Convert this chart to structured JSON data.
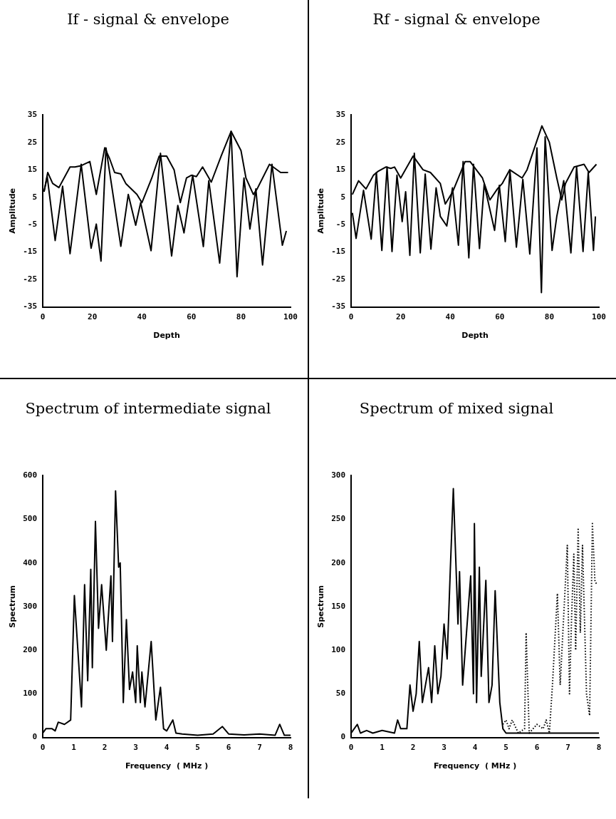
{
  "chart_data": [
    {
      "type": "line",
      "title": "If - signal & envelope",
      "xlabel": "Depth",
      "ylabel": "Amplitude",
      "xlim": [
        0,
        100
      ],
      "xticks": [
        0,
        20,
        40,
        60,
        80,
        100
      ],
      "ylim": [
        -35,
        35
      ],
      "yticks": [
        35,
        25,
        15,
        5,
        -5,
        -15,
        -25,
        -35
      ],
      "series": [
        {
          "color": "#000000",
          "x": [
            0.5,
            1.8,
            5,
            8,
            11,
            15.5,
            19.5,
            21.6,
            23.5,
            25.5,
            31.5,
            34.5,
            37.5,
            39.5,
            43.7,
            47.5,
            52,
            54.5,
            57,
            60.5,
            64.8,
            67,
            71.4,
            76,
            78.4,
            81.2,
            83.6,
            86,
            88.7,
            92.5,
            96.7,
            98.3
          ],
          "values": [
            7,
            12.5,
            -10.8,
            9,
            -15.6,
            17,
            -13.6,
            -4.8,
            -18.3,
            23,
            -12.9,
            6,
            -5.2,
            3,
            -14.5,
            21,
            -16.4,
            2,
            -8,
            13,
            -13,
            11,
            -19,
            29,
            -24,
            12,
            -6.6,
            8,
            -19.7,
            17,
            -12.5,
            -7.3
          ]
        },
        {
          "color": "#000000",
          "x": [
            0.5,
            2,
            4,
            6.5,
            11,
            13,
            15.5,
            19,
            21.6,
            25,
            27,
            29,
            31.5,
            33.5,
            38,
            40,
            44,
            47,
            50,
            53,
            55.5,
            58,
            60,
            62,
            64.5,
            68,
            72,
            76,
            80,
            82,
            85,
            86.5,
            91.5,
            96,
            99
          ],
          "values": [
            7,
            14,
            10,
            8.5,
            16,
            16,
            16.5,
            18,
            6,
            23,
            19,
            14,
            13.5,
            10,
            6,
            3,
            12,
            20,
            20,
            15,
            3,
            12,
            13,
            12.5,
            16,
            10.5,
            20,
            29,
            22,
            12,
            6,
            8,
            17,
            14,
            14
          ]
        }
      ]
    },
    {
      "type": "line",
      "title": "Rf - signal & envelope",
      "xlabel": "Depth",
      "ylabel": "Amplitude",
      "xlim": [
        0,
        100
      ],
      "xticks": [
        0,
        20,
        40,
        60,
        80,
        100
      ],
      "ylim": [
        -35,
        35
      ],
      "yticks": [
        35,
        25,
        15,
        5,
        -5,
        -15,
        -25,
        -35
      ],
      "series": [
        {
          "color": "#000000",
          "x": [
            0.5,
            2,
            5,
            8.1,
            10.2,
            12.4,
            14.5,
            16.5,
            18.5,
            20.6,
            22,
            23.7,
            25.5,
            27.9,
            29.9,
            32.2,
            34.3,
            36,
            38.6,
            40.9,
            43.3,
            45.2,
            47.5,
            49.4,
            51.8,
            53.7,
            57.9,
            59.8,
            62.2,
            64.1,
            66.7,
            69.3,
            72.1,
            75,
            76.8,
            78.3,
            81.1,
            83,
            85.8,
            88.7,
            91,
            93.6,
            95.7,
            97.8,
            98.6
          ],
          "values": [
            -0.7,
            -10,
            7.5,
            -10.3,
            14,
            -14.4,
            16,
            -14.8,
            13,
            -3.9,
            7,
            -16.2,
            21,
            -15.3,
            13.4,
            -13.9,
            8.4,
            -2,
            -5.5,
            8.4,
            -12.5,
            18,
            -17.1,
            17,
            -13.7,
            9.7,
            -7.1,
            9.3,
            -11.2,
            14.7,
            -13.2,
            11.5,
            -15.7,
            23,
            -29.8,
            27,
            -14.4,
            -2,
            11,
            -15.3,
            16,
            -14.8,
            14,
            -14.4,
            -2
          ]
        },
        {
          "color": "#000000",
          "x": [
            0.5,
            3,
            6,
            9,
            11,
            14,
            16,
            17.5,
            20,
            25,
            29,
            32,
            36,
            38,
            41,
            46,
            48,
            53,
            56,
            59,
            61,
            64,
            69,
            71,
            77,
            80,
            83,
            85,
            86.5,
            90,
            94,
            96,
            99
          ],
          "values": [
            6,
            11,
            8,
            13,
            14.5,
            16,
            15.5,
            16,
            12,
            20,
            15,
            14,
            10,
            2.5,
            7,
            18,
            18,
            12,
            4,
            8,
            10,
            15,
            12,
            15,
            31,
            25,
            12,
            4,
            10,
            16,
            17,
            14,
            17
          ]
        }
      ]
    },
    {
      "type": "line",
      "title": "Spectrum of intermediate signal",
      "xlabel": "Frequency  ( MHz )",
      "ylabel": "Spectrum",
      "xlim": [
        0,
        8
      ],
      "xticks": [
        0,
        1,
        2,
        3,
        4,
        5,
        6,
        7,
        8
      ],
      "ylim": [
        0,
        600
      ],
      "yticks": [
        0,
        100,
        200,
        300,
        400,
        500,
        600
      ],
      "series": [
        {
          "color": "#000000",
          "x": [
            0,
            0.1,
            0.3,
            0.4,
            0.5,
            0.7,
            0.9,
            1.02,
            1.25,
            1.35,
            1.45,
            1.55,
            1.6,
            1.7,
            1.8,
            1.9,
            2.05,
            2.2,
            2.25,
            2.35,
            2.45,
            2.5,
            2.6,
            2.7,
            2.8,
            2.9,
            3.0,
            3.05,
            3.15,
            3.2,
            3.3,
            3.5,
            3.65,
            3.8,
            3.9,
            4.0,
            4.2,
            4.3,
            4.5,
            5,
            5.5,
            5.8,
            6,
            6.5,
            7,
            7.5,
            7.65,
            7.8,
            8
          ],
          "values": [
            10,
            20,
            20,
            15,
            35,
            30,
            40,
            325,
            70,
            350,
            130,
            385,
            160,
            495,
            250,
            350,
            200,
            370,
            220,
            565,
            390,
            400,
            80,
            270,
            110,
            150,
            80,
            210,
            80,
            150,
            70,
            220,
            40,
            115,
            20,
            15,
            40,
            10,
            8,
            5,
            8,
            25,
            8,
            6,
            8,
            5,
            30,
            5,
            5
          ]
        }
      ]
    },
    {
      "type": "line",
      "title": "Spectrum of mixed signal",
      "xlabel": "Frequency  ( MHz )",
      "ylabel": "Spectrum",
      "xlim": [
        0,
        8
      ],
      "xticks": [
        0,
        1,
        2,
        3,
        4,
        5,
        6,
        7,
        8
      ],
      "ylim": [
        0,
        300
      ],
      "yticks": [
        0,
        50,
        100,
        150,
        200,
        250,
        300
      ],
      "series": [
        {
          "color": "#000000",
          "x": [
            0,
            0.2,
            0.3,
            0.5,
            0.7,
            1.0,
            1.4,
            1.5,
            1.6,
            1.8,
            1.9,
            2.0,
            2.1,
            2.2,
            2.3,
            2.5,
            2.6,
            2.7,
            2.8,
            2.9,
            3.0,
            3.1,
            3.2,
            3.3,
            3.45,
            3.5,
            3.6,
            3.86,
            3.95,
            3.98,
            4.05,
            4.14,
            4.2,
            4.35,
            4.45,
            4.55,
            4.65,
            4.8,
            4.9,
            5.0,
            8.0
          ],
          "values": [
            5,
            15,
            5,
            8,
            5,
            8,
            5,
            20,
            10,
            10,
            60,
            30,
            50,
            110,
            40,
            80,
            40,
            105,
            50,
            70,
            130,
            90,
            190,
            285,
            130,
            190,
            60,
            185,
            50,
            245,
            40,
            195,
            70,
            180,
            40,
            60,
            168,
            40,
            10,
            5,
            5
          ]
        },
        {
          "color": "#000000",
          "line_style": "dotted",
          "x": [
            4.9,
            5.0,
            5.1,
            5.2,
            5.4,
            5.6,
            5.65,
            5.75,
            6.0,
            6.2,
            6.3,
            6.4,
            6.5,
            6.66,
            6.75,
            6.85,
            6.98,
            7.05,
            7.12,
            7.19,
            7.25,
            7.33,
            7.4,
            7.47,
            7.6,
            7.7,
            7.79,
            7.87,
            7.93
          ],
          "values": [
            15,
            20,
            10,
            20,
            5,
            10,
            120,
            5,
            15,
            10,
            20,
            5,
            60,
            165,
            60,
            130,
            220,
            50,
            140,
            210,
            100,
            240,
            120,
            220,
            50,
            25,
            245,
            180,
            175
          ]
        }
      ]
    }
  ]
}
